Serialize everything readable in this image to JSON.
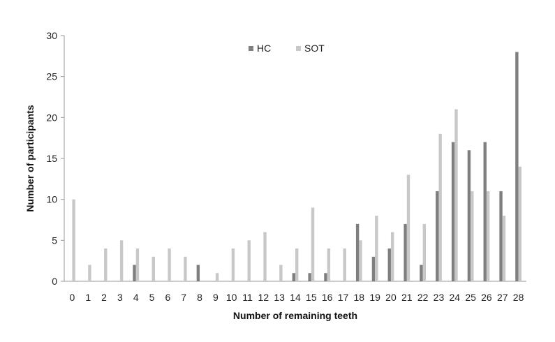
{
  "chart_data": {
    "type": "bar",
    "title": "",
    "xlabel": "Number of remaining teeth",
    "ylabel": "Number of participants",
    "ylim": [
      0,
      30
    ],
    "yticks": [
      0,
      5,
      10,
      15,
      20,
      25,
      30
    ],
    "grid": false,
    "legend_position": "top-center",
    "categories": [
      "0",
      "1",
      "2",
      "3",
      "4",
      "5",
      "6",
      "7",
      "8",
      "9",
      "10",
      "11",
      "12",
      "13",
      "14",
      "15",
      "16",
      "17",
      "18",
      "19",
      "20",
      "21",
      "22",
      "23",
      "24",
      "25",
      "26",
      "27",
      "28"
    ],
    "series": [
      {
        "name": "HC",
        "color": "#7f7f7f",
        "values": [
          0,
          0,
          0,
          0,
          2,
          0,
          0,
          0,
          2,
          0,
          0,
          0,
          0,
          0,
          1,
          1,
          1,
          0,
          7,
          3,
          4,
          7,
          2,
          11,
          17,
          16,
          17,
          11,
          28
        ]
      },
      {
        "name": "SOT",
        "color": "#c8c8c8",
        "values": [
          10,
          2,
          4,
          5,
          4,
          3,
          4,
          3,
          0,
          1,
          4,
          5,
          6,
          2,
          4,
          9,
          4,
          4,
          5,
          8,
          6,
          13,
          7,
          18,
          21,
          11,
          11,
          8,
          14
        ]
      }
    ]
  }
}
